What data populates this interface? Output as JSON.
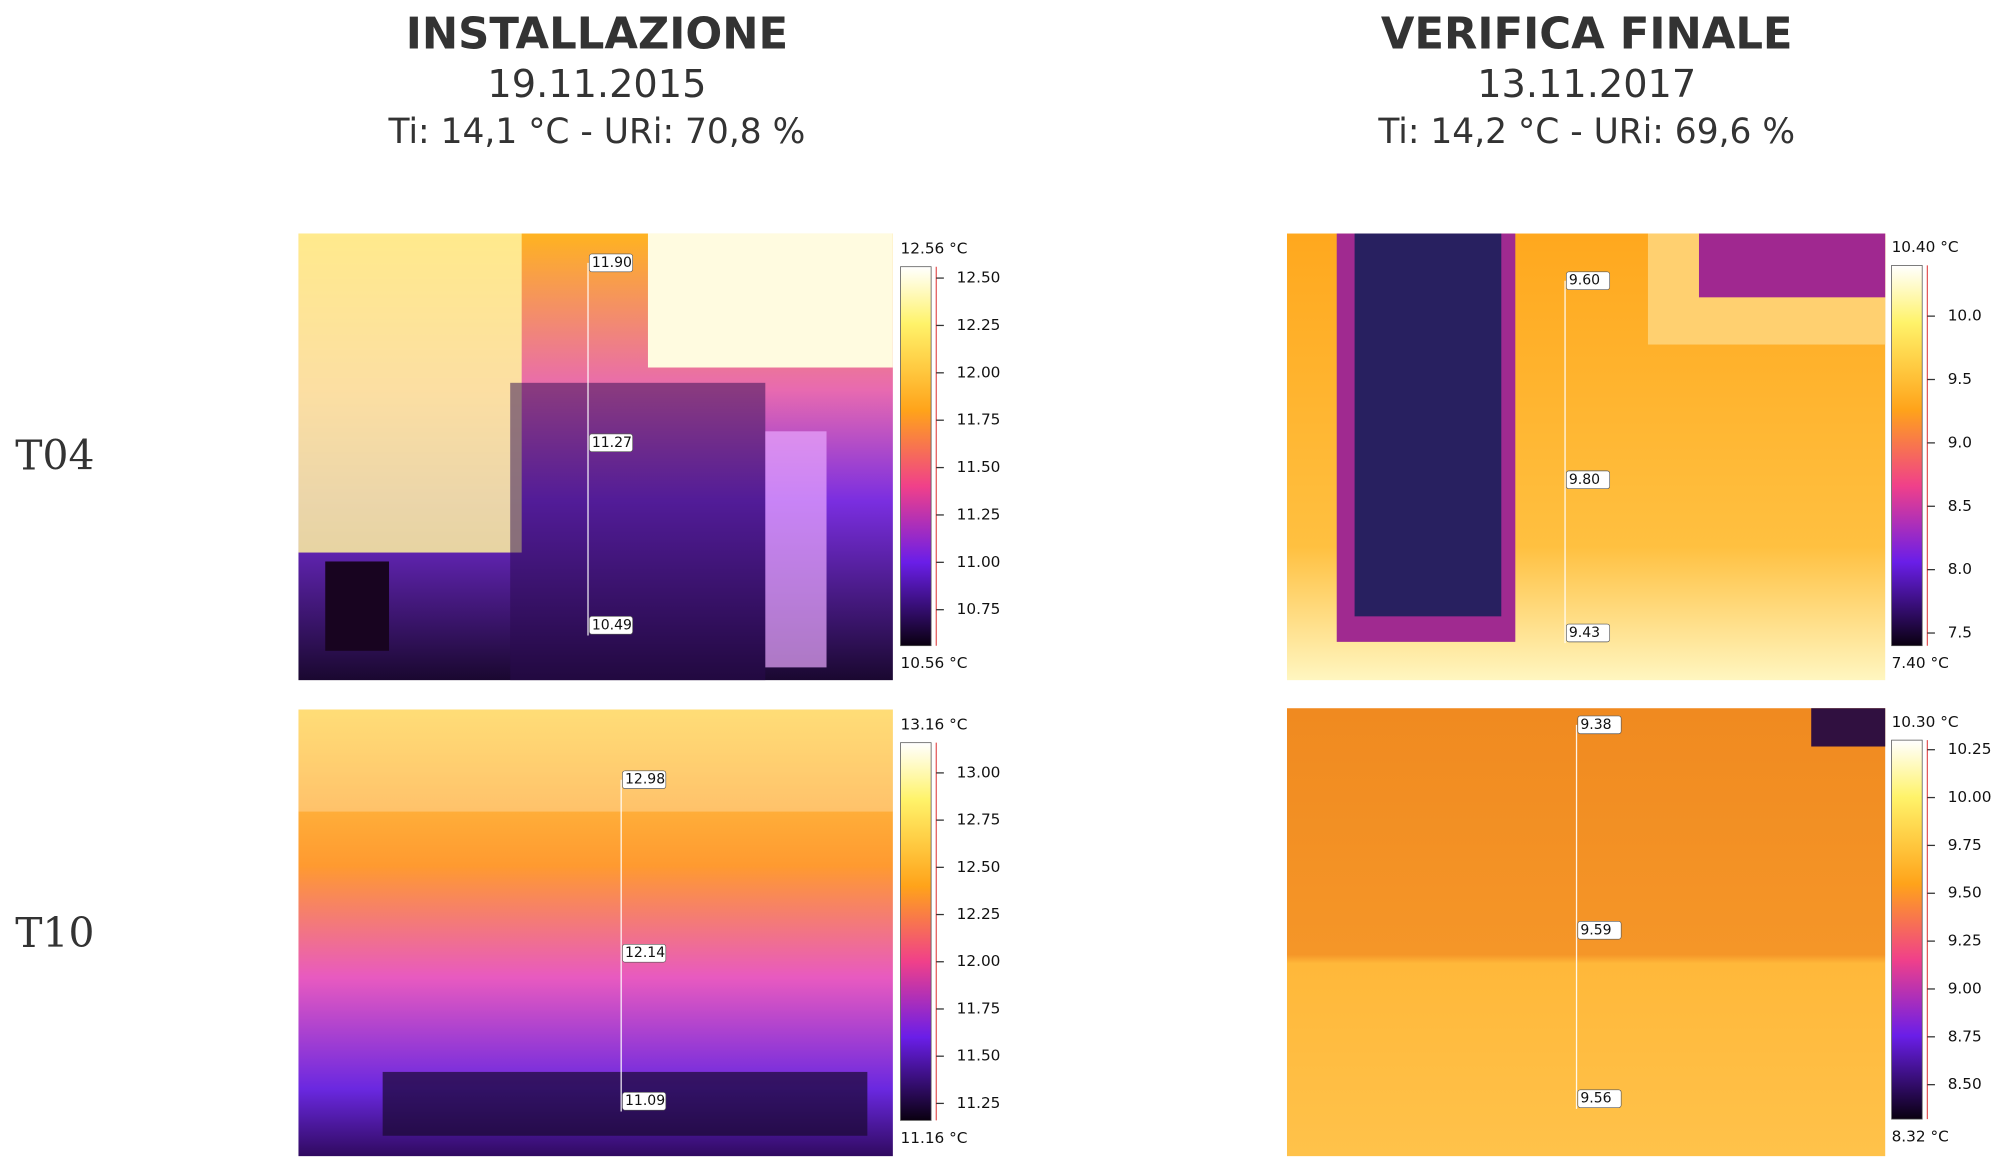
{
  "columns": [
    {
      "title": "INSTALLAZIONE",
      "date": "19.11.2015",
      "conditions": "Ti: 14,1 °C - URi: 70,8 %"
    },
    {
      "title": "VERIFICA FINALE",
      "date": "13.11.2017",
      "conditions": "Ti: 14,2 °C - URi: 69,6 %"
    }
  ],
  "rows": [
    {
      "label": "T04",
      "panels": [
        {
          "measurements": [
            "11.90",
            "11.27",
            "10.49"
          ],
          "scale": {
            "max": {
              "value": 12.56,
              "label": "12.56 °C"
            },
            "min": {
              "value": 10.56,
              "label": "10.56 °C"
            },
            "ticks": [
              {
                "value": 12.5,
                "label": "12.50"
              },
              {
                "value": 12.25,
                "label": "12.25"
              },
              {
                "value": 12,
                "label": "12.00"
              },
              {
                "value": 11.75,
                "label": "11.75"
              },
              {
                "value": 11.5,
                "label": "11.50"
              },
              {
                "value": 11.25,
                "label": "11.25"
              },
              {
                "value": 11,
                "label": "11.00"
              },
              {
                "value": 10.75,
                "label": "10.75"
              }
            ]
          }
        },
        {
          "measurements": [
            "9.60",
            "9.80",
            "9.43"
          ],
          "scale": {
            "max": {
              "value": 10.4,
              "label": "10.40 °C"
            },
            "min": {
              "value": 7.4,
              "label": "7.40 °C"
            },
            "ticks": [
              {
                "value": 10,
                "label": "10.0"
              },
              9.5,
              {
                "value": 9,
                "label": "9.0"
              },
              8.5,
              {
                "value": 8,
                "label": "8.0"
              },
              7.5
            ]
          }
        }
      ]
    },
    {
      "label": "T10",
      "panels": [
        {
          "measurements": [
            "12.98",
            "12.14",
            "11.09"
          ],
          "scale": {
            "max": {
              "value": 13.16,
              "label": "13.16 °C"
            },
            "min": {
              "value": 11.16,
              "label": "11.16 °C"
            },
            "ticks": [
              {
                "value": 13,
                "label": "13.00"
              },
              {
                "value": 12.75,
                "label": "12.75"
              },
              {
                "value": 12.5,
                "label": "12.50"
              },
              {
                "value": 12.25,
                "label": "12.25"
              },
              {
                "value": 12,
                "label": "12.00"
              },
              {
                "value": 11.75,
                "label": "11.75"
              },
              {
                "value": 11.5,
                "label": "11.50"
              },
              {
                "value": 11.25,
                "label": "11.25"
              }
            ]
          }
        },
        {
          "measurements": [
            "9.38",
            "9.59",
            "9.56"
          ],
          "scale": {
            "max": {
              "value": 10.3,
              "label": "10.30 °C"
            },
            "min": {
              "value": 8.32,
              "label": "8.32 °C"
            },
            "ticks": [
              {
                "value": 10.25,
                "label": "10.25"
              },
              {
                "value": 10,
                "label": "10.00"
              },
              {
                "value": 9.75,
                "label": "9.75"
              },
              {
                "value": 9.5,
                "label": "9.50"
              },
              {
                "value": 9.25,
                "label": "9.25"
              },
              {
                "value": 9,
                "label": "9.00"
              },
              {
                "value": 8.75,
                "label": "8.75"
              },
              {
                "value": 8.5,
                "label": "8.50"
              }
            ]
          }
        }
      ]
    }
  ]
}
